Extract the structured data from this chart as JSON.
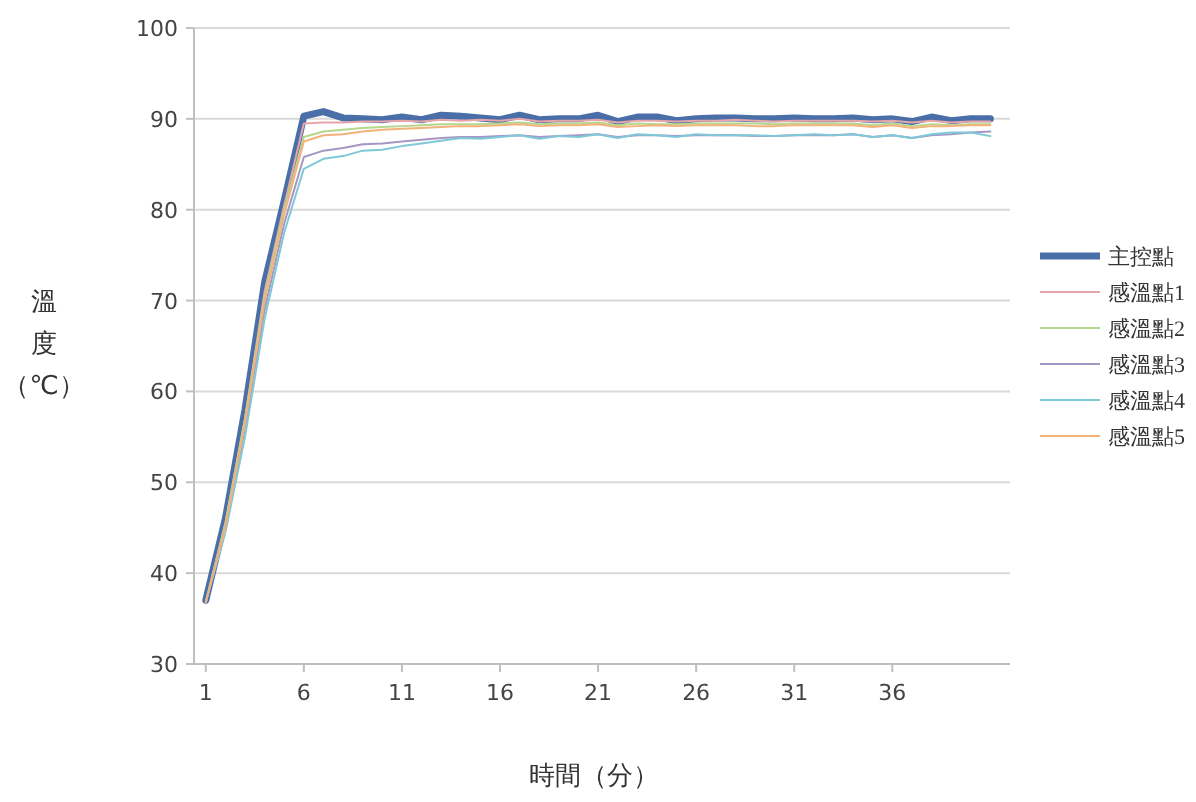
{
  "chart_data": {
    "type": "line",
    "xlabel": "時間（分）",
    "ylabel": "溫度（℃）",
    "x": [
      1,
      2,
      3,
      4,
      5,
      6,
      7,
      8,
      9,
      10,
      11,
      12,
      13,
      14,
      15,
      16,
      17,
      18,
      19,
      20,
      21,
      22,
      23,
      24,
      25,
      26,
      27,
      28,
      29,
      30,
      31,
      32,
      33,
      34,
      35,
      36,
      37,
      38,
      39,
      40,
      41
    ],
    "xlim": [
      0.4,
      42
    ],
    "xticks": [
      1,
      6,
      11,
      16,
      21,
      26,
      31,
      36
    ],
    "ylim": [
      30,
      100
    ],
    "yticks": [
      30,
      40,
      50,
      60,
      70,
      80,
      90,
      100
    ],
    "grid": "y",
    "legend": "right",
    "marker": "none",
    "line_style": "solid",
    "series": [
      {
        "name": "主控點",
        "color": "#4a6fa8",
        "values": [
          37,
          46,
          58,
          72,
          81,
          90.3,
          90.8,
          90.1,
          90,
          89.9,
          90.2,
          89.9,
          90.4,
          90.3,
          90.1,
          89.9,
          90.4,
          89.9,
          90,
          90,
          90.4,
          89.7,
          90.2,
          90.2,
          89.8,
          90,
          90.1,
          90.1,
          90,
          90,
          90.1,
          90,
          90,
          90.1,
          89.9,
          90,
          89.7,
          90.2,
          89.8,
          90,
          90
        ]
      },
      {
        "name": "感溫點1",
        "color": "#e6a5a8",
        "values": [
          36.8,
          45.5,
          57,
          71,
          80.5,
          89.5,
          89.6,
          89.6,
          89.7,
          89.7,
          89.8,
          89.7,
          89.9,
          89.8,
          89.9,
          89.8,
          90,
          89.7,
          89.8,
          89.8,
          89.9,
          89.6,
          89.8,
          89.8,
          89.7,
          89.8,
          89.8,
          89.9,
          89.8,
          89.7,
          89.8,
          89.8,
          89.8,
          89.8,
          89.7,
          89.8,
          89.6,
          89.8,
          89.6,
          89.7,
          89.7
        ]
      },
      {
        "name": "感溫點2",
        "color": "#b5d68c",
        "values": [
          36.8,
          45.5,
          57,
          70.5,
          80,
          88,
          88.6,
          88.8,
          89,
          89.1,
          89.2,
          89.3,
          89.4,
          89.4,
          89.4,
          89.5,
          89.6,
          89.4,
          89.5,
          89.5,
          89.6,
          89.3,
          89.5,
          89.4,
          89.4,
          89.5,
          89.5,
          89.5,
          89.5,
          89.4,
          89.5,
          89.5,
          89.5,
          89.5,
          89.3,
          89.5,
          89.2,
          89.4,
          89.3,
          89.4,
          89.4
        ]
      },
      {
        "name": "感溫點3",
        "color": "#a597c4",
        "values": [
          36.8,
          45,
          56,
          69,
          78.5,
          85.8,
          86.5,
          86.8,
          87.2,
          87.3,
          87.5,
          87.7,
          87.9,
          88,
          88,
          88.1,
          88.2,
          88,
          88.1,
          88.2,
          88.3,
          88,
          88.2,
          88.2,
          88.1,
          88.2,
          88.2,
          88.2,
          88.1,
          88.1,
          88.2,
          88.2,
          88.2,
          88.3,
          88,
          88.2,
          87.9,
          88.2,
          88.3,
          88.5,
          88.6
        ]
      },
      {
        "name": "感溫點4",
        "color": "#7fc8d8",
        "values": [
          36.8,
          44.5,
          55,
          68,
          77.5,
          84.5,
          85.6,
          85.9,
          86.5,
          86.6,
          87,
          87.3,
          87.6,
          87.9,
          87.8,
          88,
          88.2,
          87.8,
          88.1,
          88,
          88.3,
          87.9,
          88.3,
          88.2,
          88,
          88.3,
          88.2,
          88.2,
          88.2,
          88.1,
          88.2,
          88.3,
          88.2,
          88.3,
          88,
          88.2,
          87.9,
          88.3,
          88.5,
          88.5,
          88.1
        ]
      },
      {
        "name": "感溫點5",
        "color": "#f2b27a",
        "values": [
          36.8,
          45,
          56.5,
          70,
          79.5,
          87.5,
          88.2,
          88.3,
          88.6,
          88.8,
          88.9,
          89,
          89.1,
          89.2,
          89.2,
          89.3,
          89.4,
          89.2,
          89.3,
          89.3,
          89.4,
          89.1,
          89.2,
          89.3,
          89.2,
          89.3,
          89.3,
          89.3,
          89.2,
          89.2,
          89.3,
          89.3,
          89.3,
          89.3,
          89.1,
          89.3,
          89,
          89.2,
          89.2,
          89.3,
          89.3
        ]
      }
    ]
  }
}
